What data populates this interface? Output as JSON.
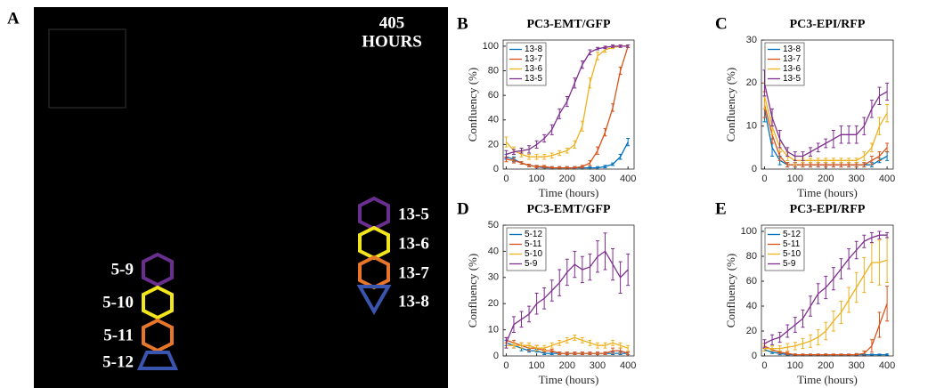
{
  "image_panel": {
    "label": "A",
    "time_value": "405",
    "time_unit": "HOURS",
    "regions": [
      {
        "label": "13-5"
      },
      {
        "label": "13-6"
      },
      {
        "label": "13-7"
      },
      {
        "label": "13-8"
      },
      {
        "label": "5-9"
      },
      {
        "label": "5-10"
      },
      {
        "label": "5-11"
      },
      {
        "label": "5-12"
      }
    ]
  },
  "chart_data": [
    {
      "type": "line",
      "panel": "B",
      "title": "PC3-EMT/GFP",
      "x_label": "Time (hours)",
      "y_label": "Confluency (%)",
      "x": [
        0,
        25,
        50,
        75,
        100,
        125,
        150,
        175,
        200,
        225,
        250,
        275,
        300,
        325,
        350,
        375,
        400
      ],
      "xlim": [
        -10,
        420
      ],
      "xticks": [
        0,
        100,
        200,
        300,
        400
      ],
      "ylim": [
        0,
        105
      ],
      "yticks": [
        0,
        20,
        40,
        60,
        80,
        100
      ],
      "legend": "upper left",
      "series": [
        {
          "name": "13-8",
          "color": "#0072bd",
          "values": [
            10,
            8,
            5,
            3,
            2,
            1,
            1,
            1,
            1,
            1,
            1,
            1,
            1,
            2,
            4,
            10,
            22
          ],
          "errors": [
            2,
            2,
            1,
            1,
            1,
            1,
            1,
            1,
            1,
            1,
            1,
            1,
            1,
            1,
            1,
            2,
            3
          ]
        },
        {
          "name": "13-7",
          "color": "#d95319",
          "values": [
            8,
            7,
            5,
            3,
            2,
            2,
            1,
            1,
            1,
            1,
            2,
            5,
            15,
            30,
            50,
            80,
            100
          ],
          "errors": [
            2,
            2,
            1,
            1,
            1,
            1,
            1,
            1,
            1,
            1,
            1,
            2,
            3,
            3,
            3,
            3,
            1
          ]
        },
        {
          "name": "13-6",
          "color": "#edb120",
          "values": [
            22,
            15,
            12,
            10,
            10,
            10,
            11,
            13,
            15,
            20,
            35,
            70,
            92,
            97,
            99,
            100,
            100
          ],
          "errors": [
            4,
            3,
            2,
            2,
            2,
            2,
            2,
            2,
            2,
            3,
            4,
            4,
            3,
            2,
            1,
            1,
            1
          ]
        },
        {
          "name": "13-5",
          "color": "#7e2f8e",
          "values": [
            12,
            14,
            15,
            16,
            20,
            25,
            32,
            45,
            55,
            70,
            85,
            95,
            98,
            99,
            100,
            100,
            100
          ],
          "errors": [
            3,
            2,
            2,
            3,
            3,
            3,
            4,
            4,
            4,
            4,
            3,
            2,
            1,
            1,
            1,
            1,
            1
          ]
        }
      ]
    },
    {
      "type": "line",
      "panel": "C",
      "title": "PC3-EPI/RFP",
      "x_label": "Time (hours)",
      "y_label": "Confluency (%)",
      "x": [
        0,
        25,
        50,
        75,
        100,
        125,
        150,
        175,
        200,
        225,
        250,
        275,
        300,
        325,
        350,
        375,
        400
      ],
      "xlim": [
        -10,
        420
      ],
      "xticks": [
        0,
        100,
        200,
        300,
        400
      ],
      "ylim": [
        0,
        30
      ],
      "yticks": [
        0,
        10,
        20,
        30
      ],
      "legend": "upper left",
      "series": [
        {
          "name": "13-8",
          "color": "#0072bd",
          "values": [
            14,
            5,
            2,
            1,
            1,
            1,
            1,
            1,
            1,
            1,
            1,
            1,
            1,
            1,
            1,
            2,
            3
          ],
          "errors": [
            3,
            2,
            1,
            0.5,
            0.5,
            0.5,
            0.5,
            0.5,
            0.5,
            0.5,
            0.5,
            0.5,
            0.5,
            0.5,
            0.5,
            0.5,
            1
          ]
        },
        {
          "name": "13-7",
          "color": "#d95319",
          "values": [
            15,
            8,
            3,
            1,
            1,
            1,
            1,
            1,
            1,
            1,
            1,
            1,
            1,
            1,
            2,
            3,
            5
          ],
          "errors": [
            3,
            2,
            1,
            0.5,
            0.5,
            0.5,
            0.5,
            0.5,
            0.5,
            0.5,
            0.5,
            0.5,
            0.5,
            0.5,
            1,
            1,
            1
          ]
        },
        {
          "name": "13-6",
          "color": "#edb120",
          "values": [
            17,
            10,
            5,
            3,
            2,
            2,
            2,
            2,
            2,
            2,
            2,
            2,
            2,
            3,
            5,
            10,
            13
          ],
          "errors": [
            3,
            2,
            1,
            1,
            1,
            0.5,
            0.5,
            0.5,
            0.5,
            0.5,
            0.5,
            0.5,
            0.5,
            1,
            1,
            2,
            2
          ]
        },
        {
          "name": "13-5",
          "color": "#7e2f8e",
          "values": [
            20,
            12,
            7,
            4,
            3,
            3,
            4,
            5,
            6,
            7,
            8,
            8,
            8,
            10,
            14,
            17,
            18
          ],
          "errors": [
            3,
            2,
            2,
            1,
            1,
            1,
            1,
            1,
            1,
            2,
            2,
            2,
            2,
            2,
            2,
            2,
            2
          ]
        }
      ]
    },
    {
      "type": "line",
      "panel": "D",
      "title": "PC3-EMT/GFP",
      "x_label": "Time (hours)",
      "y_label": "Confluency (%)",
      "x": [
        0,
        25,
        50,
        75,
        100,
        125,
        150,
        175,
        200,
        225,
        250,
        275,
        300,
        325,
        350,
        375,
        400
      ],
      "xlim": [
        -10,
        420
      ],
      "xticks": [
        0,
        100,
        200,
        300,
        400
      ],
      "ylim": [
        0,
        50
      ],
      "yticks": [
        0,
        10,
        20,
        30,
        40,
        50
      ],
      "legend": "upper left",
      "series": [
        {
          "name": "5-12",
          "color": "#0072bd",
          "values": [
            5,
            4,
            3,
            2,
            2,
            1,
            1,
            1,
            1,
            1,
            1,
            1,
            1,
            1,
            1,
            1,
            1
          ],
          "errors": [
            1,
            1,
            1,
            0.5,
            0.5,
            0.5,
            0.5,
            0.5,
            0.5,
            0.5,
            0.5,
            0.5,
            0.5,
            0.5,
            0.5,
            0.5,
            0.5
          ]
        },
        {
          "name": "5-11",
          "color": "#d95319",
          "values": [
            6,
            5,
            4,
            3,
            3,
            2,
            2,
            1,
            1,
            1,
            1,
            1,
            1,
            1,
            2,
            2,
            1
          ],
          "errors": [
            1,
            1,
            1,
            1,
            1,
            0.5,
            0.5,
            0.5,
            0.5,
            0.5,
            0.5,
            0.5,
            0.5,
            0.5,
            1,
            1,
            0.5
          ]
        },
        {
          "name": "5-10",
          "color": "#edb120",
          "values": [
            4,
            4,
            4,
            4,
            3,
            3,
            4,
            5,
            6,
            7,
            6,
            5,
            4,
            4,
            5,
            4,
            3
          ],
          "errors": [
            1,
            1,
            1,
            1,
            1,
            1,
            1,
            1,
            1,
            1,
            1,
            1,
            1,
            1,
            1,
            1,
            1
          ]
        },
        {
          "name": "5-9",
          "color": "#7e2f8e",
          "values": [
            5,
            12,
            14,
            16,
            20,
            22,
            25,
            28,
            32,
            35,
            33,
            34,
            38,
            40,
            35,
            30,
            33
          ],
          "errors": [
            2,
            3,
            3,
            3,
            4,
            4,
            4,
            5,
            5,
            5,
            5,
            5,
            6,
            7,
            6,
            6,
            6
          ]
        }
      ]
    },
    {
      "type": "line",
      "panel": "E",
      "title": "PC3-EPI/RFP",
      "x_label": "Time (hours)",
      "y_label": "Confluency (%)",
      "x": [
        0,
        25,
        50,
        75,
        100,
        125,
        150,
        175,
        200,
        225,
        250,
        275,
        300,
        325,
        350,
        375,
        400
      ],
      "xlim": [
        -10,
        420
      ],
      "xticks": [
        0,
        100,
        200,
        300,
        400
      ],
      "ylim": [
        0,
        105
      ],
      "yticks": [
        0,
        20,
        40,
        60,
        80,
        100
      ],
      "legend": "upper left",
      "series": [
        {
          "name": "5-12",
          "color": "#0072bd",
          "values": [
            5,
            3,
            2,
            1,
            1,
            1,
            1,
            1,
            1,
            1,
            1,
            1,
            1,
            1,
            1,
            1,
            1
          ],
          "errors": [
            1,
            1,
            1,
            0.5,
            0.5,
            0.5,
            0.5,
            0.5,
            0.5,
            0.5,
            0.5,
            0.5,
            0.5,
            0.5,
            0.5,
            0.5,
            0.5
          ]
        },
        {
          "name": "5-11",
          "color": "#d95319",
          "values": [
            8,
            5,
            3,
            2,
            1,
            1,
            1,
            1,
            1,
            1,
            1,
            1,
            1,
            2,
            8,
            25,
            42
          ],
          "errors": [
            2,
            1,
            1,
            1,
            0.5,
            0.5,
            0.5,
            0.5,
            0.5,
            0.5,
            0.5,
            0.5,
            1,
            2,
            5,
            10,
            14
          ]
        },
        {
          "name": "5-10",
          "color": "#edb120",
          "values": [
            6,
            6,
            6,
            7,
            8,
            10,
            12,
            15,
            20,
            28,
            35,
            45,
            55,
            65,
            75,
            75,
            77
          ],
          "errors": [
            2,
            2,
            2,
            3,
            3,
            4,
            5,
            6,
            7,
            8,
            9,
            10,
            12,
            14,
            16,
            18,
            18
          ]
        },
        {
          "name": "5-9",
          "color": "#7e2f8e",
          "values": [
            10,
            13,
            15,
            20,
            25,
            30,
            40,
            50,
            55,
            62,
            70,
            78,
            85,
            92,
            95,
            97,
            97
          ],
          "errors": [
            3,
            4,
            4,
            5,
            6,
            7,
            8,
            8,
            9,
            9,
            8,
            8,
            7,
            5,
            4,
            3,
            2
          ]
        }
      ]
    }
  ]
}
